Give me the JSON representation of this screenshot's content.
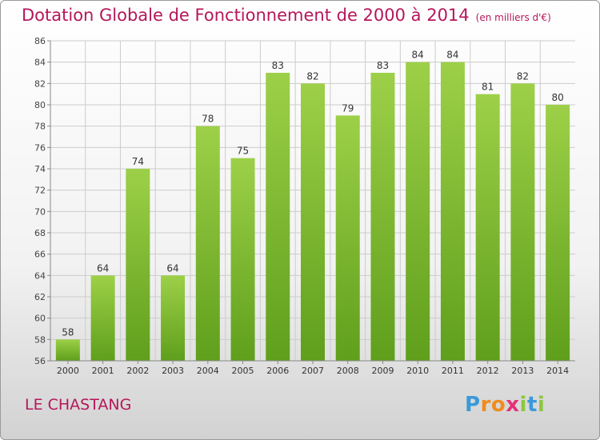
{
  "title": "Dotation Globale de Fonctionnement de 2000 à 2014",
  "unit": "(en milliers d'€)",
  "place": "LE CHASTANG",
  "logo": {
    "letters": [
      "P",
      "r",
      "o",
      "x",
      "i",
      "t",
      "i"
    ],
    "colors": [
      "#3a9ad9",
      "#f08c1e",
      "#f08c1e",
      "#e63078",
      "#8dc63f",
      "#3a9ad9",
      "#8dc63f"
    ]
  },
  "colors": {
    "bar_top": "#9dd048",
    "bar_bottom": "#5f9f1c",
    "title": "#b5175a",
    "grid": "#cccccc"
  },
  "chart_data": {
    "type": "bar",
    "categories": [
      "2000",
      "2001",
      "2002",
      "2003",
      "2004",
      "2005",
      "2006",
      "2007",
      "2008",
      "2009",
      "2010",
      "2011",
      "2012",
      "2013",
      "2014"
    ],
    "values": [
      58,
      64,
      74,
      64,
      78,
      75,
      83,
      82,
      79,
      83,
      84,
      84,
      81,
      82,
      80
    ],
    "ylim": [
      56,
      86
    ],
    "yticks": [
      56,
      58,
      60,
      62,
      64,
      66,
      68,
      70,
      72,
      74,
      76,
      78,
      80,
      82,
      84,
      86
    ],
    "grid": true,
    "legend": "none"
  }
}
